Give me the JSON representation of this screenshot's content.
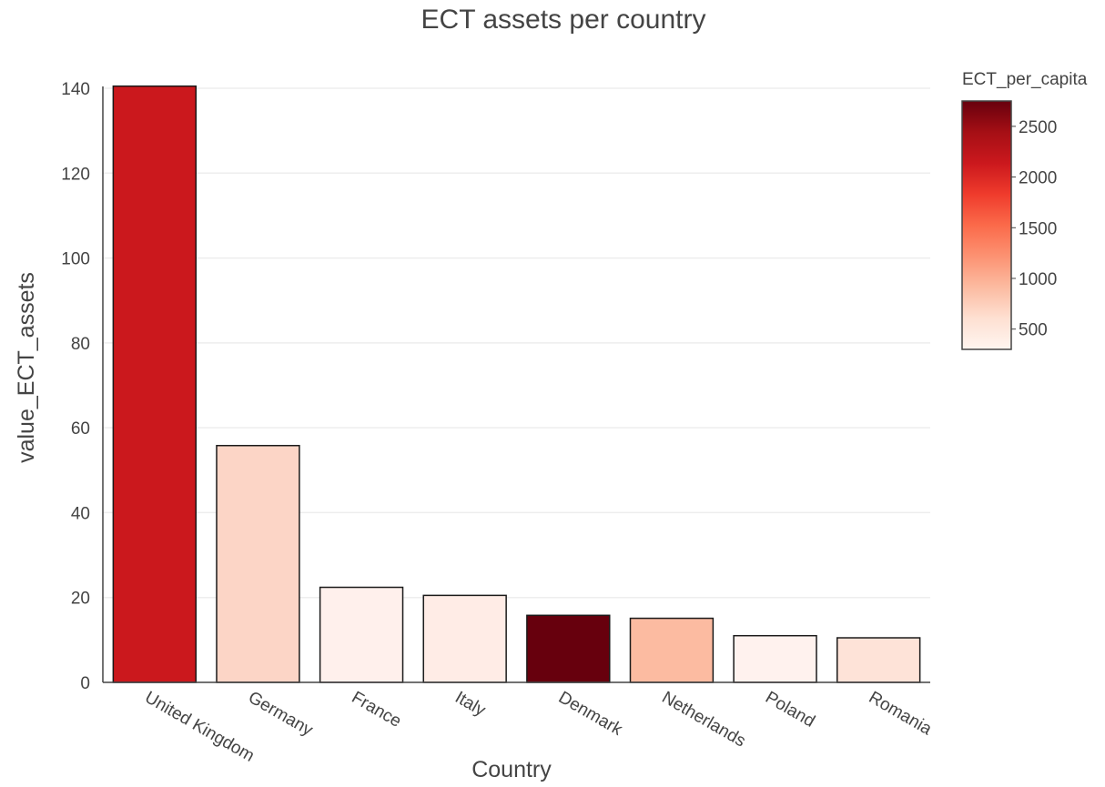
{
  "chart_data": {
    "type": "bar",
    "title": "ECT assets per country",
    "xlabel": "Country",
    "ylabel": "value_ECT_assets",
    "ylim": [
      0,
      140
    ],
    "y_ticks": [
      0,
      20,
      40,
      60,
      80,
      100,
      120,
      140
    ],
    "grid": true,
    "categories": [
      "United Kingdom",
      "Germany",
      "France",
      "Italy",
      "Denmark",
      "Netherlands",
      "Poland",
      "Romania"
    ],
    "values": [
      140.5,
      55.8,
      22.4,
      20.5,
      15.8,
      15.1,
      11.0,
      10.5
    ],
    "colors": [
      "#cb181d",
      "#fcd5c6",
      "#fff0ec",
      "#ffece6",
      "#67000d",
      "#fcbba1",
      "#fff2ee",
      "#fee3d8"
    ],
    "colorbar": {
      "title": "ECT_per_capita",
      "range": [
        300,
        2750
      ],
      "ticks": [
        500,
        1000,
        1500,
        2000,
        2500
      ],
      "colorscale": [
        "#fff5f0",
        "#fee0d2",
        "#fcbba1",
        "#fc9272",
        "#fb6a4a",
        "#ef3b2c",
        "#cb181d",
        "#a50f15",
        "#67000d"
      ],
      "position": "right"
    }
  }
}
